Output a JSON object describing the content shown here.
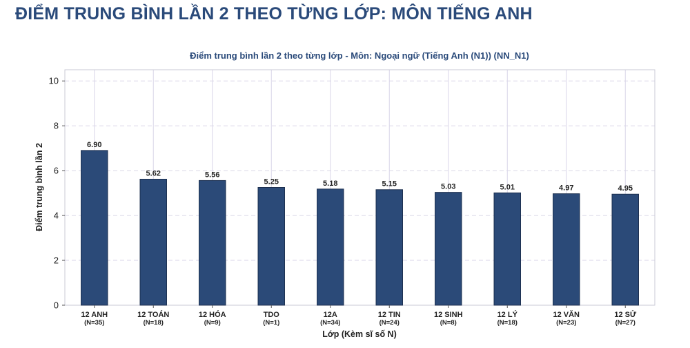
{
  "page": {
    "title": "ĐIỂM TRUNG BÌNH LẦN 2 THEO TỪNG LỚP: MÔN TIẾNG ANH"
  },
  "colors": {
    "bar": "#2b4a78",
    "bar_edge": "#1c2f4f",
    "title": "#2a4a7a",
    "grid": "#d9d6e8"
  },
  "chart_data": {
    "type": "bar",
    "title": "Điểm trung bình lần 2 theo từng lớp - Môn: Ngoại ngữ (Tiếng Anh (N1)) (NN_N1)",
    "xlabel": "Lớp (Kèm sĩ số N)",
    "ylabel": "Điểm trung bình lần 2",
    "categories": [
      {
        "name": "12 ANH",
        "n": "(N=35)"
      },
      {
        "name": "12 TOÁN",
        "n": "(N=18)"
      },
      {
        "name": "12 HÓA",
        "n": "(N=9)"
      },
      {
        "name": "TDO",
        "n": "(N=1)"
      },
      {
        "name": "12A",
        "n": "(N=34)"
      },
      {
        "name": "12 TIN",
        "n": "(N=24)"
      },
      {
        "name": "12 SINH",
        "n": "(N=8)"
      },
      {
        "name": "12 LÝ",
        "n": "(N=18)"
      },
      {
        "name": "12 VĂN",
        "n": "(N=23)"
      },
      {
        "name": "12 SỬ",
        "n": "(N=27)"
      }
    ],
    "values": [
      6.9,
      5.62,
      5.56,
      5.25,
      5.18,
      5.15,
      5.03,
      5.01,
      4.97,
      4.95
    ],
    "value_labels": [
      "6.90",
      "5.62",
      "5.56",
      "5.25",
      "5.18",
      "5.15",
      "5.03",
      "5.01",
      "4.97",
      "4.95"
    ],
    "ylim": [
      0,
      10.5
    ],
    "yticks": [
      0,
      2,
      4,
      6,
      8,
      10
    ],
    "grid": true
  }
}
